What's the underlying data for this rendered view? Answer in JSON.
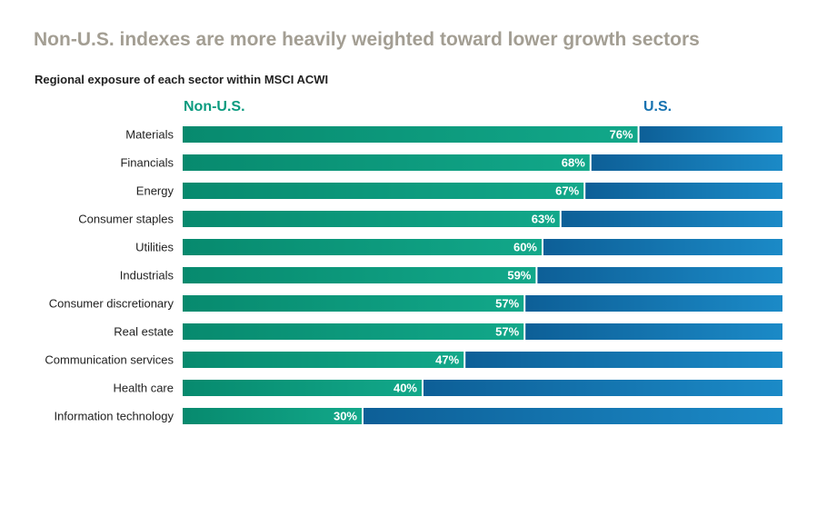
{
  "chart_data": {
    "type": "bar",
    "orientation": "horizontal",
    "stacked": true,
    "title": "Non-U.S. indexes are more heavily weighted toward lower growth sectors",
    "subtitle": "Regional exposure of each sector within MSCI ACWI",
    "legend": [
      {
        "name": "Non-U.S.",
        "color": "#0a9b7f"
      },
      {
        "name": "U.S.",
        "color": "#1672b0"
      }
    ],
    "categories": [
      "Materials",
      "Financials",
      "Energy",
      "Consumer staples",
      "Utilities",
      "Industrials",
      "Consumer discretionary",
      "Real estate",
      "Communication services",
      "Health care",
      "Information technology"
    ],
    "series": [
      {
        "name": "Non-U.S.",
        "values": [
          76,
          68,
          67,
          63,
          60,
          59,
          57,
          57,
          47,
          40,
          30
        ]
      },
      {
        "name": "U.S.",
        "values": [
          24,
          32,
          33,
          37,
          40,
          41,
          43,
          43,
          53,
          60,
          70
        ]
      }
    ],
    "value_suffix": "%",
    "xlim": [
      0,
      100
    ]
  }
}
